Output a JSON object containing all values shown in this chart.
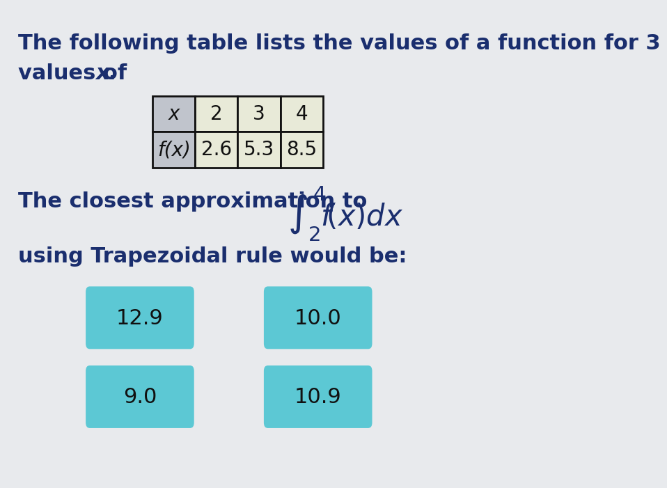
{
  "bg_color": "#e8eaed",
  "title_line1": "The following table lists the values of a function for 3",
  "title_line2": "values of ",
  "title_x_var": "x",
  "table_headers": [
    "x",
    "2",
    "3",
    "4"
  ],
  "table_row_label": "f(x)",
  "table_row_values": [
    "2.6",
    "5.3",
    "8.5"
  ],
  "text_line1": "The closest approximation to",
  "text_line2": "using Trapezoidal rule would be:",
  "answer_buttons": [
    "12.9",
    "10.0",
    "9.0",
    "10.9"
  ],
  "button_color": "#5cc8d4",
  "button_text_color": "#111111",
  "text_color": "#1a2e6e",
  "header_cell_color": "#c0c4cc",
  "data_cell_color": "#e8ead8",
  "table_border_color": "#111111",
  "title_fontsize": 22,
  "body_fontsize": 22,
  "button_fontsize": 22,
  "table_fontsize": 20
}
